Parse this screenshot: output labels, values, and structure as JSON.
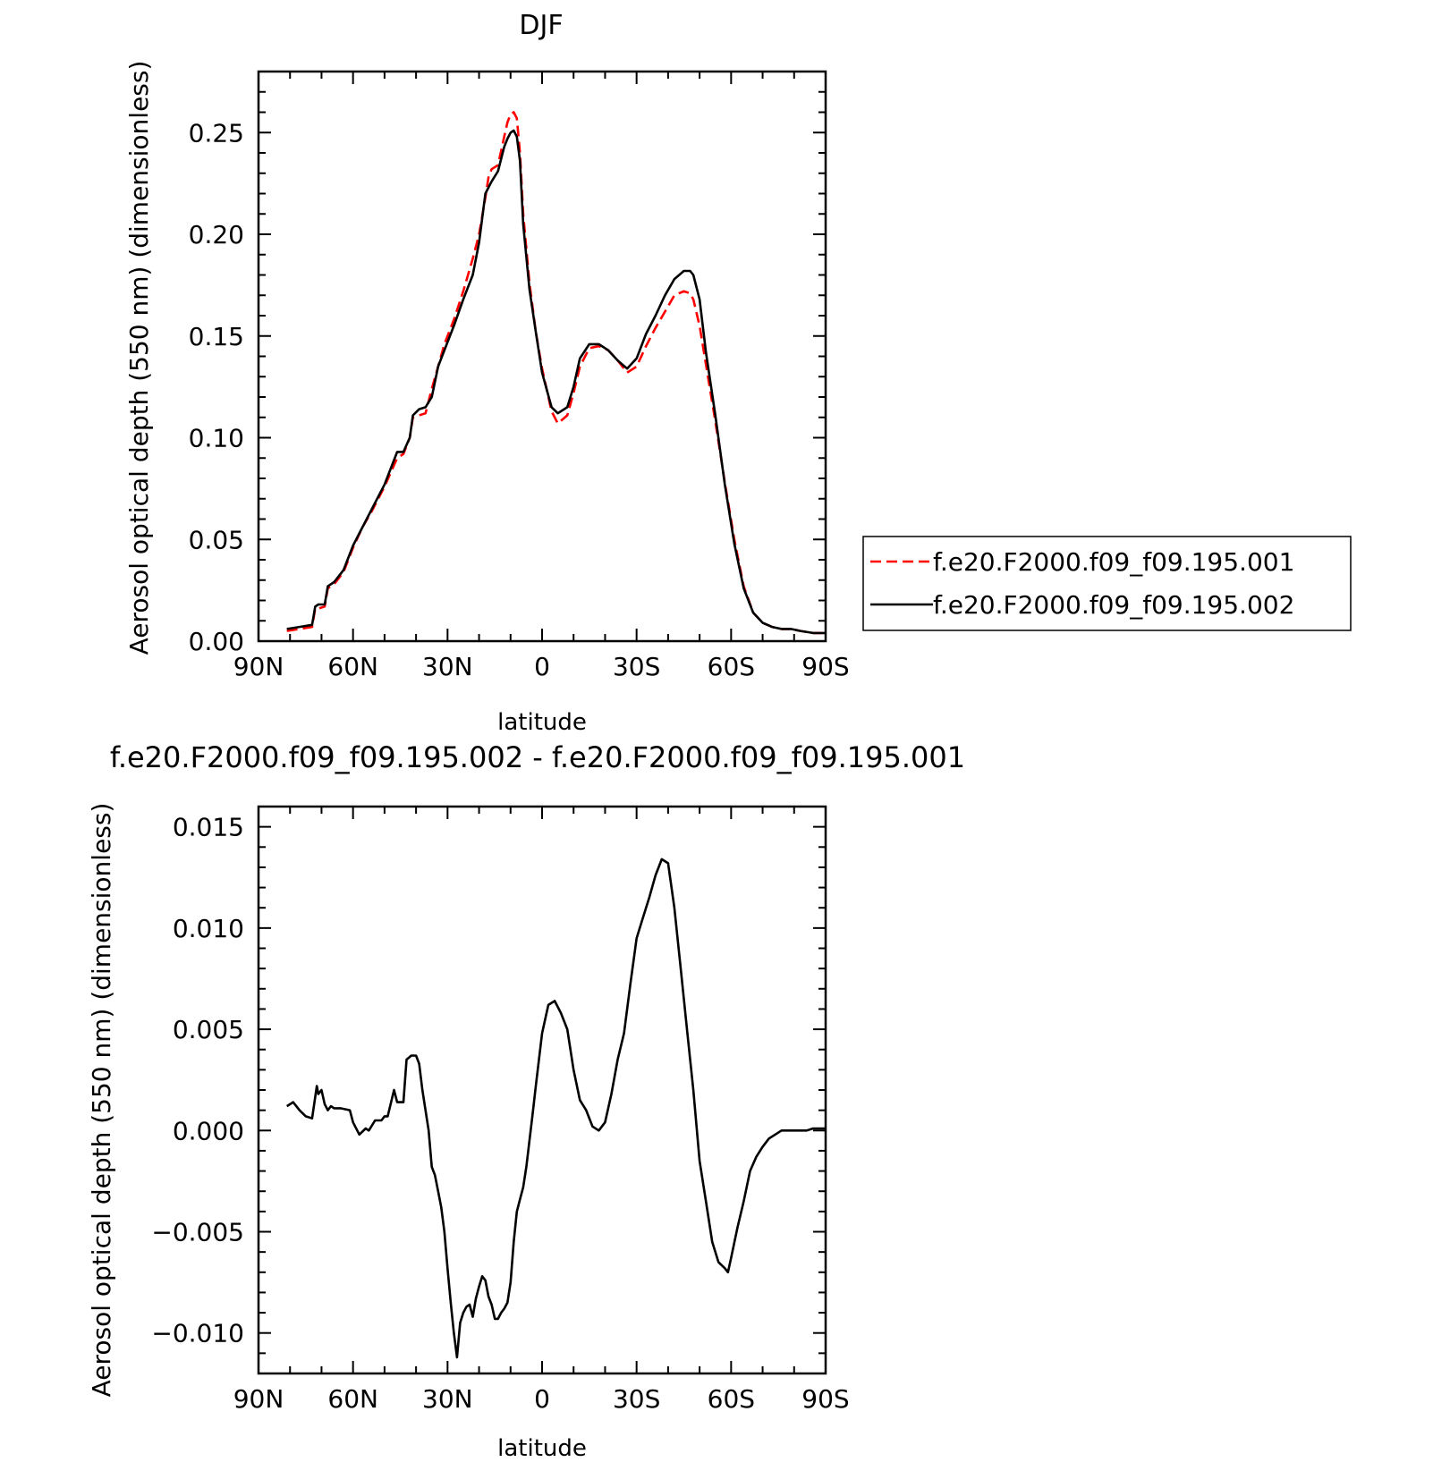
{
  "chart_data": [
    {
      "type": "line",
      "title": "DJF",
      "xlabel": "latitude",
      "ylabel": "Aerosol optical depth (550 nm) (dimensionless)",
      "xlim": [
        90,
        -90
      ],
      "ylim": [
        0,
        0.28
      ],
      "x_ticks": [
        90,
        60,
        30,
        0,
        -30,
        -60,
        -90
      ],
      "x_tick_labels": [
        "90N",
        "60N",
        "30N",
        "0",
        "30S",
        "60S",
        "90S"
      ],
      "y_ticks": [
        0,
        0.05,
        0.1,
        0.15,
        0.2,
        0.25
      ],
      "y_tick_labels": [
        "0.00",
        "0.05",
        "0.10",
        "0.15",
        "0.20",
        "0.25"
      ],
      "legend_position": "right",
      "series": [
        {
          "name": "f.e20.F2000.f09_f09.195.001",
          "color": "#ff0000",
          "dash": "dashed",
          "x": [
            81,
            77,
            73,
            72,
            71,
            69,
            68,
            66,
            63,
            60,
            57,
            54,
            50,
            46,
            44,
            42,
            41,
            39,
            37,
            35,
            33,
            31,
            28,
            25,
            22,
            20,
            18,
            17,
            16,
            14,
            12,
            11,
            10,
            9,
            8,
            7,
            6,
            4,
            2,
            0,
            -3,
            -5,
            -8,
            -10,
            -12,
            -15,
            -18,
            -21,
            -24,
            -27,
            -30,
            -33,
            -36,
            -39,
            -42,
            -45,
            -47,
            -48,
            -50,
            -52,
            -55,
            -58,
            -61,
            -64,
            -67,
            -70,
            -73,
            -76,
            -79,
            -82,
            -86,
            -90
          ],
          "y": [
            0.005,
            0.006,
            0.007,
            0.016,
            0.016,
            0.017,
            0.026,
            0.028,
            0.034,
            0.046,
            0.056,
            0.064,
            0.076,
            0.09,
            0.092,
            0.1,
            0.11,
            0.111,
            0.112,
            0.124,
            0.135,
            0.146,
            0.158,
            0.172,
            0.188,
            0.2,
            0.218,
            0.228,
            0.232,
            0.234,
            0.248,
            0.255,
            0.259,
            0.26,
            0.257,
            0.24,
            0.21,
            0.176,
            0.152,
            0.134,
            0.113,
            0.107,
            0.111,
            0.122,
            0.135,
            0.144,
            0.145,
            0.143,
            0.138,
            0.132,
            0.135,
            0.145,
            0.154,
            0.162,
            0.17,
            0.172,
            0.171,
            0.168,
            0.155,
            0.136,
            0.108,
            0.078,
            0.05,
            0.027,
            0.014,
            0.009,
            0.007,
            0.006,
            0.006,
            0.005,
            0.004,
            0.004
          ]
        },
        {
          "name": "f.e20.F2000.f09_f09.195.002",
          "color": "#000000",
          "dash": "solid",
          "x": [
            81,
            77,
            73,
            72,
            71,
            69,
            68,
            66,
            63,
            60,
            57,
            54,
            50,
            46,
            44,
            42,
            41,
            39,
            37,
            35,
            33,
            31,
            28,
            25,
            22,
            20,
            18,
            17,
            16,
            14,
            12,
            11,
            10,
            9,
            8,
            7,
            6,
            4,
            2,
            0,
            -3,
            -5,
            -8,
            -10,
            -12,
            -15,
            -18,
            -21,
            -24,
            -27,
            -30,
            -33,
            -36,
            -39,
            -42,
            -45,
            -47,
            -48,
            -50,
            -52,
            -55,
            -58,
            -61,
            -64,
            -67,
            -70,
            -73,
            -76,
            -79,
            -82,
            -86,
            -90
          ],
          "y": [
            0.006,
            0.007,
            0.008,
            0.017,
            0.018,
            0.018,
            0.027,
            0.029,
            0.035,
            0.047,
            0.056,
            0.065,
            0.077,
            0.093,
            0.093,
            0.1,
            0.111,
            0.114,
            0.115,
            0.12,
            0.135,
            0.143,
            0.155,
            0.168,
            0.18,
            0.196,
            0.22,
            0.223,
            0.226,
            0.231,
            0.243,
            0.247,
            0.25,
            0.251,
            0.248,
            0.236,
            0.205,
            0.173,
            0.152,
            0.132,
            0.115,
            0.112,
            0.115,
            0.125,
            0.139,
            0.146,
            0.146,
            0.143,
            0.138,
            0.134,
            0.139,
            0.151,
            0.16,
            0.17,
            0.178,
            0.182,
            0.182,
            0.18,
            0.168,
            0.142,
            0.111,
            0.077,
            0.048,
            0.026,
            0.014,
            0.009,
            0.007,
            0.006,
            0.006,
            0.005,
            0.004,
            0.004
          ]
        }
      ]
    },
    {
      "type": "line",
      "title": "f.e20.F2000.f09_f09.195.002 - f.e20.F2000.f09_f09.195.001",
      "xlabel": "latitude",
      "ylabel": "Aerosol optical depth (550 nm) (dimensionless)",
      "xlim": [
        90,
        -90
      ],
      "ylim": [
        -0.012,
        0.016
      ],
      "x_ticks": [
        90,
        60,
        30,
        0,
        -30,
        -60,
        -90
      ],
      "x_tick_labels": [
        "90N",
        "60N",
        "30N",
        "0",
        "30S",
        "60S",
        "90S"
      ],
      "y_ticks": [
        -0.01,
        -0.005,
        0,
        0.005,
        0.01,
        0.015
      ],
      "y_tick_labels": [
        "−0.010",
        "−0.005",
        "0.000",
        "0.005",
        "0.010",
        "0.015"
      ],
      "series": [
        {
          "color": "#000000",
          "x": [
            81,
            79,
            77,
            75,
            73,
            71.5,
            71,
            70,
            69,
            68,
            67,
            66,
            64,
            61,
            60,
            58,
            56,
            55,
            53,
            51,
            50,
            49,
            47,
            46,
            44,
            43,
            41.5,
            40,
            39,
            38,
            36,
            35,
            34,
            33,
            32,
            31,
            30,
            29,
            28,
            27,
            26,
            25,
            24,
            23,
            22,
            21,
            20,
            19,
            18,
            17,
            16,
            15,
            14,
            13,
            12,
            11,
            10,
            9,
            8,
            7,
            6,
            5,
            4,
            3,
            2,
            0,
            -2,
            -4,
            -6,
            -8,
            -10,
            -12,
            -14,
            -16,
            -18,
            -20,
            -22,
            -24,
            -26,
            -28,
            -30,
            -32,
            -34,
            -36,
            -38,
            -40,
            -42,
            -44,
            -45,
            -46,
            -48,
            -50,
            -52,
            -54,
            -56,
            -58,
            -59,
            -60,
            -62,
            -64,
            -66,
            -68,
            -70,
            -72,
            -74,
            -76,
            -78,
            -80,
            -82,
            -84,
            -86,
            -88,
            -90
          ],
          "y": [
            0.0012,
            0.0014,
            0.001,
            0.0007,
            0.0006,
            0.0022,
            0.0018,
            0.002,
            0.0013,
            0.001,
            0.0012,
            0.0011,
            0.0011,
            0.001,
            0.0004,
            -0.0002,
            0.0001,
            0.0,
            0.0005,
            0.0005,
            0.0007,
            0.0007,
            0.002,
            0.0014,
            0.0014,
            0.0035,
            0.0037,
            0.0037,
            0.0033,
            0.002,
            0.0,
            -0.0018,
            -0.0022,
            -0.003,
            -0.0038,
            -0.005,
            -0.0068,
            -0.0085,
            -0.01,
            -0.0112,
            -0.0095,
            -0.009,
            -0.0087,
            -0.0086,
            -0.0092,
            -0.0083,
            -0.0077,
            -0.0072,
            -0.0074,
            -0.0082,
            -0.0086,
            -0.0093,
            -0.0093,
            -0.009,
            -0.0088,
            -0.0085,
            -0.0075,
            -0.0055,
            -0.004,
            -0.0034,
            -0.0028,
            -0.0018,
            -0.0005,
            0.0008,
            0.0022,
            0.0048,
            0.0062,
            0.0064,
            0.0058,
            0.005,
            0.003,
            0.0015,
            0.001,
            0.0002,
            0.0,
            0.0004,
            0.0018,
            0.0035,
            0.0048,
            0.0072,
            0.0095,
            0.0105,
            0.0115,
            0.0126,
            0.0134,
            0.0132,
            0.011,
            0.008,
            0.0065,
            0.005,
            0.002,
            -0.0015,
            -0.0035,
            -0.0055,
            -0.0065,
            -0.0068,
            -0.007,
            -0.0063,
            -0.0048,
            -0.0035,
            -0.002,
            -0.0013,
            -0.0008,
            -0.0004,
            -0.0002,
            0.0,
            0.0,
            0.0,
            0.0,
            0.0,
            0.0001,
            0.0001,
            0.0001
          ]
        }
      ]
    }
  ]
}
